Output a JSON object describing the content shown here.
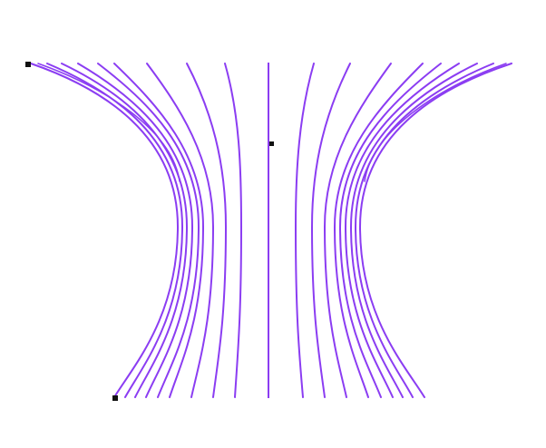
{
  "canvas": {
    "background": "#ffffff"
  },
  "drawing": {
    "stroke_color": "#8b3df2",
    "handle_color": "#111111",
    "curve_count": 20,
    "center_line_count": 1,
    "selection_handle_count": 3
  }
}
